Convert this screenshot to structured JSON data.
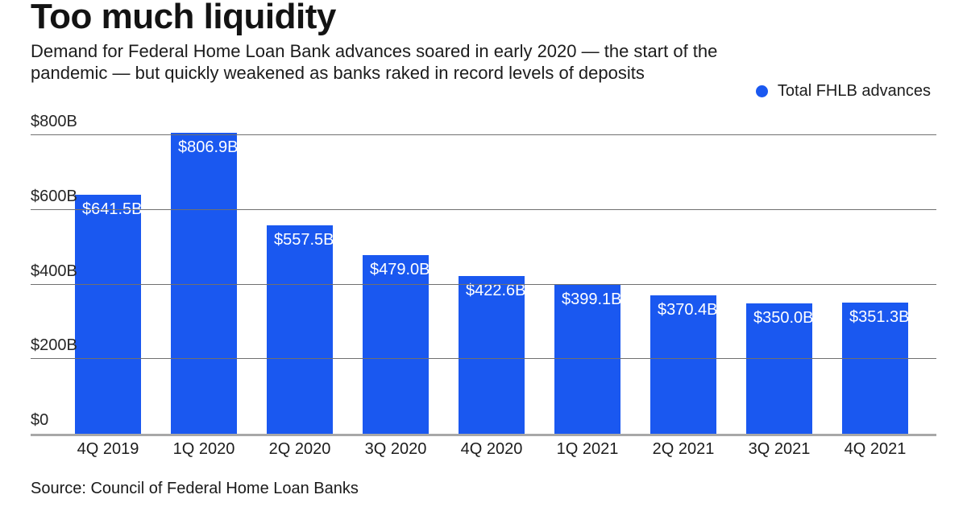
{
  "header": {
    "title": "Too much liquidity",
    "subtitle_line1": "Demand for Federal Home Loan Bank advances soared in early 2020 — the start of the",
    "subtitle_line2": "pandemic — but quickly weakened as banks raked in record levels of deposits"
  },
  "legend": {
    "label": "Total FHLB advances",
    "marker_color": "#1a58f0"
  },
  "footer": {
    "source": "Source: Council of Federal Home Loan Banks"
  },
  "colors": {
    "bar": "#1a58f0",
    "gridline": "#707070",
    "axis": "#a8a8a8",
    "bar_label_text": "#ffffff"
  },
  "chart_data": {
    "type": "bar",
    "title": "Too much liquidity",
    "series_name": "Total FHLB advances",
    "categories": [
      "4Q 2019",
      "1Q 2020",
      "2Q 2020",
      "3Q 2020",
      "4Q 2020",
      "1Q 2021",
      "2Q 2021",
      "3Q 2021",
      "4Q 2021"
    ],
    "values": [
      641.5,
      806.9,
      557.5,
      479.0,
      422.6,
      399.1,
      370.4,
      350.0,
      351.3
    ],
    "bar_labels": [
      "$641.5B",
      "$806.9B",
      "$557.5B",
      "$479.0B",
      "$422.6B",
      "$399.1B",
      "$370.4B",
      "$350.0B",
      "$351.3B"
    ],
    "xlabel": "",
    "ylabel": "",
    "ylim": [
      0,
      800
    ],
    "yticks": [
      {
        "value": 0,
        "label": "$0"
      },
      {
        "value": 200,
        "label": "$200B"
      },
      {
        "value": 400,
        "label": "$400B"
      },
      {
        "value": 600,
        "label": "$600B"
      },
      {
        "value": 800,
        "label": "$800B"
      }
    ],
    "grid": true,
    "legend_position": "top-right",
    "bar_color": "#1a58f0"
  }
}
